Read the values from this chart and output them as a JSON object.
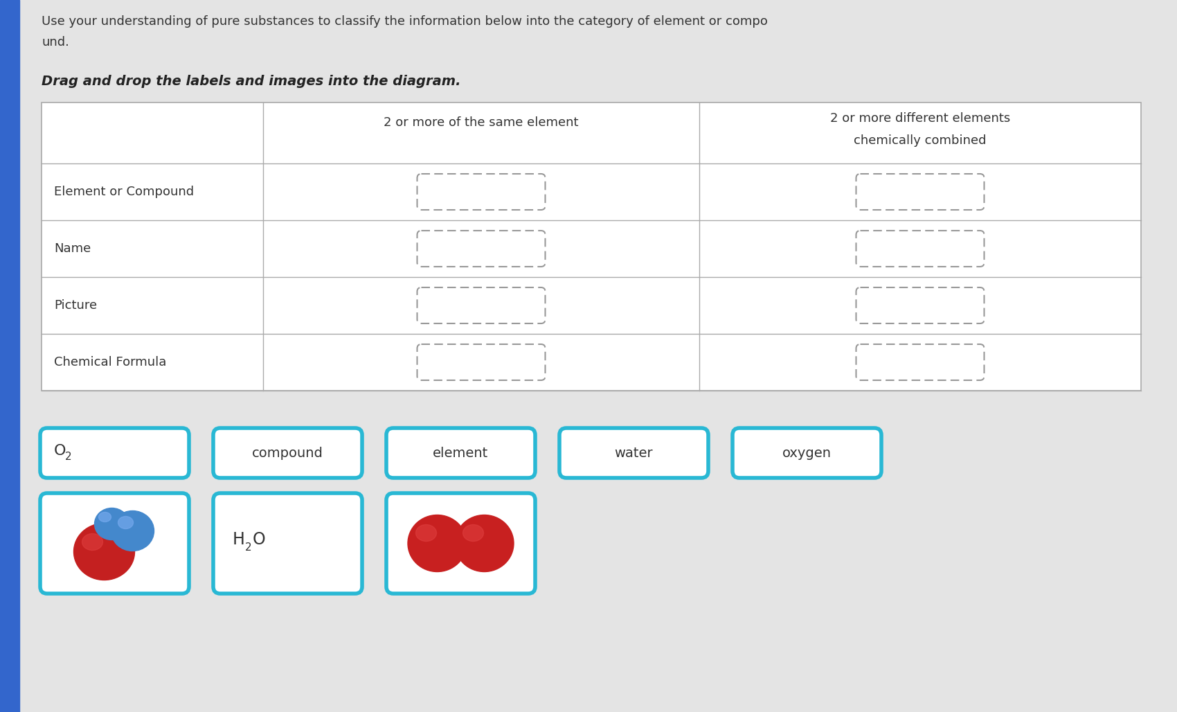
{
  "bg_color": "#d8d8d8",
  "content_bg": "#e4e4e4",
  "white": "#ffffff",
  "title_text1": "Use your understanding of pure substances to classify the information below into the category of element or compo",
  "title_text2": "und.",
  "subtitle_text": "Drag and drop the labels and images into the diagram.",
  "col2_header_line1": "2 or more of the same element",
  "col3_header_line1": "2 or more different elements",
  "col3_header_line2": "chemically combined",
  "row_labels": [
    "Element or Compound",
    "Name",
    "Picture",
    "Chemical Formula"
  ],
  "table_border_color": "#aaaaaa",
  "dashed_box_color": "#aaaaaa",
  "cyan_border": "#29b8d4",
  "left_bar_color": "#3366cc",
  "label_items_row1": [
    "O2",
    "compound",
    "element",
    "water",
    "oxygen"
  ],
  "title_fontsize": 13,
  "subtitle_fontsize": 14,
  "table_fontsize": 13,
  "label_fontsize": 14
}
